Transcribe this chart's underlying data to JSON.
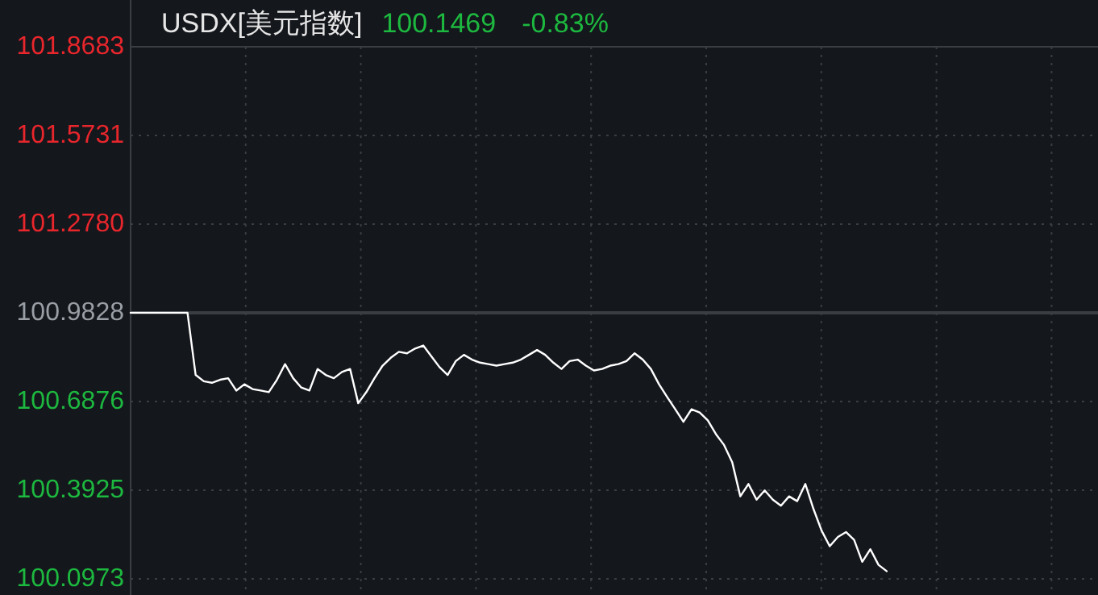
{
  "chart_data": {
    "type": "line",
    "title": "USDX[美元指数]",
    "annotations": [
      "100.1469",
      "-0.83%"
    ],
    "categories": [
      null,
      null,
      null,
      null,
      null,
      null,
      null,
      null,
      null,
      null,
      null,
      null,
      null,
      null,
      null,
      null,
      null,
      null,
      null,
      null,
      null,
      null,
      null,
      null,
      null,
      null,
      null,
      null,
      null,
      null,
      null,
      null,
      null,
      null,
      null,
      null,
      null,
      null,
      null,
      null,
      null,
      null,
      null,
      null,
      null,
      null,
      null,
      null,
      null,
      null,
      null,
      null,
      null,
      null,
      null,
      null,
      null,
      null,
      null,
      null,
      null,
      null,
      null,
      null,
      null,
      null,
      null,
      null,
      null,
      null,
      null,
      null,
      null,
      null,
      null,
      null,
      null,
      null,
      null,
      null,
      null,
      null,
      null,
      null,
      null,
      null,
      null,
      null,
      null,
      null,
      null,
      null,
      null,
      null,
      null,
      null,
      null,
      null,
      null,
      null,
      null,
      null,
      null,
      null,
      null,
      null,
      null,
      null,
      null,
      null,
      null,
      null,
      null,
      null,
      null,
      null,
      null,
      null,
      null,
      null
    ],
    "series": [
      {
        "color": "#ffffff",
        "values": [
          100.983,
          100.983,
          100.983,
          100.983,
          100.983,
          100.983,
          100.983,
          100.983,
          100.776,
          100.755,
          100.75,
          100.76,
          100.765,
          100.724,
          100.745,
          100.729,
          100.724,
          100.719,
          100.76,
          100.812,
          100.765,
          100.734,
          100.724,
          100.796,
          100.776,
          100.765,
          100.786,
          100.796,
          100.682,
          100.719,
          100.765,
          100.807,
          100.833,
          100.853,
          100.848,
          100.864,
          100.874,
          100.838,
          100.802,
          100.776,
          100.822,
          100.843,
          100.827,
          100.817,
          100.812,
          100.807,
          100.812,
          100.817,
          100.827,
          100.843,
          100.859,
          100.843,
          100.817,
          100.796,
          100.822,
          100.827,
          100.807,
          100.791,
          100.796,
          100.807,
          100.812,
          100.822,
          100.848,
          100.827,
          100.796,
          100.745,
          100.703,
          100.662,
          100.62,
          100.662,
          100.651,
          100.625,
          100.579,
          100.543,
          100.486,
          100.372,
          100.413,
          100.361,
          100.392,
          100.361,
          100.341,
          100.372,
          100.356,
          100.413,
          100.33,
          100.258,
          100.206,
          100.237,
          100.253,
          100.227,
          100.154,
          100.196,
          100.144,
          100.123,
          null,
          null,
          null,
          null,
          null,
          null,
          null,
          null,
          null,
          null,
          null,
          null,
          null,
          null,
          null,
          null,
          null,
          null,
          null,
          null,
          null,
          null,
          null,
          null,
          null,
          null
        ]
      }
    ],
    "ylim": [
      100.0973,
      101.8683
    ],
    "yticks": [
      101.8683,
      101.5731,
      {
        "value": 101.278,
        "label": "101.2780"
      },
      100.9828,
      100.6876,
      100.3925,
      100.0973
    ],
    "ref_lines": [
      {
        "axis": "y",
        "value": 100.9828,
        "color": "#3a3d42"
      }
    ],
    "grid": true
  }
}
